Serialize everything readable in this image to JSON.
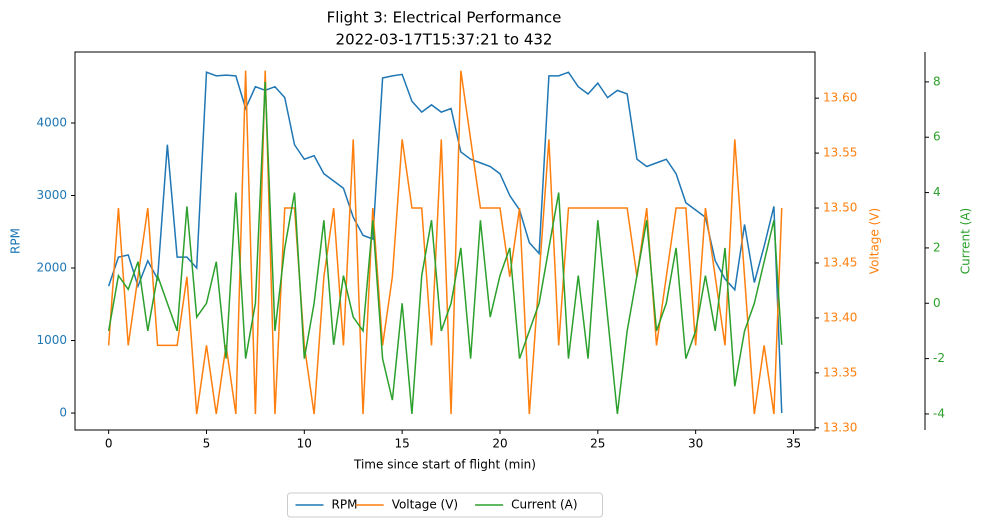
{
  "chart_data": {
    "type": "line",
    "title": "Flight 3: Electrical Performance",
    "subtitle": "2022-03-17T15:37:21 to 432",
    "xlabel": "Time since start of flight (min)",
    "ylabel": "RPM",
    "y2label": "Voltage (V)",
    "y3label": "Current (A)",
    "xlim": [
      -1.72,
      36.1
    ],
    "xticks": [
      0,
      5,
      10,
      15,
      20,
      25,
      30,
      35
    ],
    "ylim": [
      -234,
      4979
    ],
    "yticks": [
      0,
      1000,
      2000,
      3000,
      4000
    ],
    "y2lim": [
      13.298,
      13.642
    ],
    "y2ticks": [
      {
        "value": 13.3,
        "label": "13.30"
      },
      {
        "value": 13.35,
        "label": "13.35"
      },
      {
        "value": 13.4,
        "label": "13.40"
      },
      {
        "value": 13.45,
        "label": "13.45"
      },
      {
        "value": 13.5,
        "label": "13.50"
      },
      {
        "value": 13.55,
        "label": "13.55"
      },
      {
        "value": 13.6,
        "label": "13.60"
      }
    ],
    "y3lim": [
      -4.58,
      9.08
    ],
    "y3ticks": [
      -4,
      -2,
      0,
      2,
      4,
      6,
      8
    ],
    "legend": "lower center",
    "x": [
      0,
      0.5,
      1,
      1.5,
      2,
      2.5,
      3,
      3.5,
      4,
      4.5,
      5,
      5.5,
      6,
      6.5,
      7,
      7.5,
      8,
      8.5,
      9,
      9.5,
      10,
      10.5,
      11,
      11.5,
      12,
      12.5,
      13,
      13.5,
      14,
      14.5,
      15,
      15.5,
      16,
      16.5,
      17,
      17.5,
      18,
      18.5,
      19,
      19.5,
      20,
      20.5,
      21,
      21.5,
      22,
      22.5,
      23,
      23.5,
      24,
      24.5,
      25,
      25.5,
      26,
      26.5,
      27,
      27.5,
      28,
      28.5,
      29,
      29.5,
      30,
      30.5,
      31,
      31.5,
      32,
      32.5,
      33,
      33.5,
      34,
      34.4
    ],
    "series": [
      {
        "name": "RPM",
        "color": "#1f77b4",
        "axis": "y",
        "values": [
          1750,
          2150,
          2180,
          1750,
          2100,
          1850,
          3700,
          2150,
          2150,
          2000,
          4700,
          4650,
          4660,
          4650,
          4200,
          4500,
          4450,
          4500,
          4350,
          3700,
          3500,
          3550,
          3300,
          3200,
          3100,
          2700,
          2450,
          2400,
          4620,
          4650,
          4670,
          4300,
          4150,
          4250,
          4150,
          4200,
          3600,
          3500,
          3450,
          3400,
          3300,
          3000,
          2800,
          2350,
          2200,
          4650,
          4650,
          4700,
          4500,
          4400,
          4550,
          4350,
          4450,
          4400,
          3500,
          3400,
          3450,
          3500,
          3300,
          2900,
          2800,
          2700,
          2100,
          1850,
          1700,
          2600,
          1800,
          2300,
          2850,
          0
        ]
      },
      {
        "name": "Voltage (V)",
        "color": "#ff7f0e",
        "axis": "y2",
        "values": [
          13.375,
          13.5,
          13.375,
          13.4375,
          13.5,
          13.375,
          13.375,
          13.375,
          13.4375,
          13.3125,
          13.375,
          13.3125,
          13.375,
          13.3125,
          13.625,
          13.3125,
          13.625,
          13.3125,
          13.5,
          13.5,
          13.375,
          13.3125,
          13.4375,
          13.5,
          13.375,
          13.5625,
          13.3125,
          13.5,
          13.375,
          13.4375,
          13.5625,
          13.5,
          13.5,
          13.375,
          13.5625,
          13.3125,
          13.625,
          13.5625,
          13.5,
          13.5,
          13.5,
          13.4375,
          13.5,
          13.3125,
          13.4375,
          13.5625,
          13.375,
          13.5,
          13.5,
          13.5,
          13.5,
          13.5,
          13.5,
          13.5,
          13.4375,
          13.5,
          13.375,
          13.4375,
          13.5,
          13.5,
          13.375,
          13.5,
          13.4375,
          13.375,
          13.5625,
          13.4375,
          13.3125,
          13.375,
          13.3125,
          13.5
        ]
      },
      {
        "name": "Current (A)",
        "color": "#2ca02c",
        "axis": "y3",
        "values": [
          -1,
          1,
          0.5,
          1.5,
          -1,
          1,
          0,
          -1,
          3.5,
          -0.5,
          0,
          1.5,
          -2,
          4,
          -2,
          0,
          8,
          -1,
          2,
          4,
          -2,
          0,
          3,
          -1.5,
          1,
          -0.5,
          -1,
          3,
          -2,
          -3.5,
          0,
          -4,
          1,
          3,
          -1,
          0,
          2,
          -2,
          3,
          -0.5,
          1,
          2,
          -2,
          -1,
          0,
          2,
          4,
          -2,
          1,
          -2,
          3,
          -0.5,
          -4,
          -1,
          1,
          3,
          -1,
          0,
          2,
          -2,
          -1,
          1,
          -1,
          2,
          -3,
          -1,
          0,
          1.5,
          3,
          -1.5
        ]
      }
    ]
  }
}
